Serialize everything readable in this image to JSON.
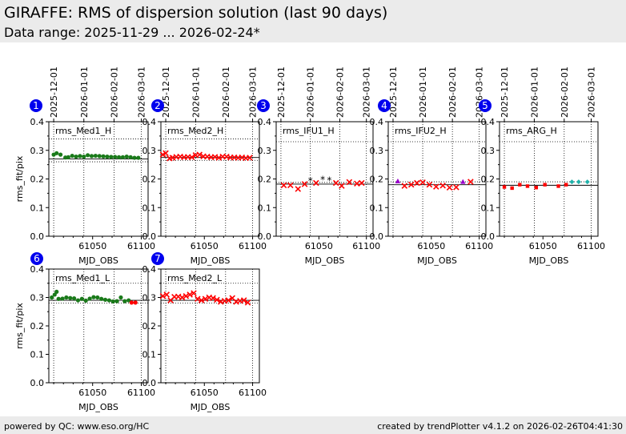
{
  "header": {
    "title": "GIRAFFE: RMS of dispersion solution (last 90 days)",
    "subtitle": "Data range: 2025-11-29 ... 2026-02-24*"
  },
  "footer": {
    "left": "powered by QC: www.eso.org/HC",
    "right": "created by trendPlotter v4.1.2 on 2026-02-26T04:41:30"
  },
  "colors": {
    "background": "#ffffff",
    "band": "#ebebeb",
    "badge": "#0000ee",
    "green": "#1a7a1a",
    "red": "#ff0000",
    "black": "#000000",
    "purple": "#9900cc",
    "cyan": "#20b2aa"
  },
  "chart_data": [
    {
      "type": "scatter",
      "badge": "1",
      "label": "rms_Med1_H",
      "xlabel": "MJD_OBS",
      "ylabel": "rms_fit/pix",
      "xticks": [
        61050,
        61100
      ],
      "yticks": [
        0.0,
        0.1,
        0.2,
        0.3,
        0.4
      ],
      "date_ticks": [
        "2025-12-01",
        "2026-01-01",
        "2026-02-01",
        "2026-03-01"
      ],
      "xlim": [
        61005,
        61107
      ],
      "ylim": [
        0,
        0.4
      ],
      "ref_lines": {
        "solid": 0.27,
        "dotted": [
          0.26,
          0.34
        ]
      },
      "series": [
        {
          "marker": "circle",
          "color": "#1a7a1a",
          "x": [
            61010,
            61013,
            61017,
            61022,
            61025,
            61029,
            61033,
            61037,
            61041,
            61045,
            61049,
            61053,
            61057,
            61061,
            61065,
            61069,
            61073,
            61077,
            61081,
            61085,
            61089,
            61093,
            61097
          ],
          "y": [
            0.285,
            0.29,
            0.285,
            0.275,
            0.276,
            0.281,
            0.278,
            0.28,
            0.278,
            0.283,
            0.28,
            0.281,
            0.28,
            0.279,
            0.278,
            0.277,
            0.277,
            0.276,
            0.276,
            0.278,
            0.276,
            0.274,
            0.274
          ]
        }
      ]
    },
    {
      "type": "scatter",
      "badge": "2",
      "label": "rms_Med2_H",
      "xlabel": "MJD_OBS",
      "ylabel": "",
      "xticks": [
        61050,
        61100
      ],
      "yticks": [
        0.0,
        0.1,
        0.2,
        0.3,
        0.4
      ],
      "date_ticks": [
        "2025-12-01",
        "2026-01-01",
        "2026-02-01",
        "2026-03-01"
      ],
      "xlim": [
        61005,
        61107
      ],
      "ylim": [
        0,
        0.4
      ],
      "ref_lines": {
        "solid": 0.275,
        "dotted": [
          0.265,
          0.34
        ]
      },
      "series": [
        {
          "marker": "x",
          "color": "#ff0000",
          "x": [
            61007,
            61010,
            61014,
            61017,
            61021,
            61025,
            61029,
            61033,
            61037,
            61041,
            61045,
            61049,
            61053,
            61057,
            61061,
            61065,
            61069,
            61073,
            61077,
            61081,
            61085,
            61089,
            61093,
            61097
          ],
          "y": [
            0.285,
            0.29,
            0.272,
            0.274,
            0.277,
            0.278,
            0.276,
            0.277,
            0.276,
            0.283,
            0.285,
            0.279,
            0.278,
            0.276,
            0.277,
            0.274,
            0.278,
            0.278,
            0.275,
            0.275,
            0.274,
            0.275,
            0.273,
            0.274
          ]
        }
      ]
    },
    {
      "type": "scatter",
      "badge": "3",
      "label": "rms_IFU1_H",
      "xlabel": "MJD_OBS",
      "ylabel": "",
      "xticks": [
        61050,
        61100
      ],
      "yticks": [
        0.0,
        0.1,
        0.2,
        0.3,
        0.4
      ],
      "date_ticks": [
        "2025-12-01",
        "2026-01-01",
        "2026-02-01",
        "2026-03-01"
      ],
      "xlim": [
        61005,
        61107
      ],
      "ylim": [
        0,
        0.4
      ],
      "ref_lines": {
        "solid": 0.182,
        "dotted": [
          0.188,
          0.33
        ]
      },
      "series": [
        {
          "marker": "x",
          "color": "#ff0000",
          "x": [
            61013,
            61020,
            61028,
            61035,
            61047,
            61068,
            61074,
            61082,
            61090,
            61095
          ],
          "y": [
            0.178,
            0.178,
            0.165,
            0.182,
            0.186,
            0.186,
            0.176,
            0.189,
            0.184,
            0.186
          ]
        },
        {
          "marker": "star",
          "color": "#000000",
          "x": [
            61041,
            61054,
            61061
          ],
          "y": [
            0.19,
            0.195,
            0.192
          ]
        }
      ]
    },
    {
      "type": "scatter",
      "badge": "4",
      "label": "rms_IFU2_H",
      "xlabel": "MJD_OBS",
      "ylabel": "",
      "xticks": [
        61050,
        61100
      ],
      "yticks": [
        0.0,
        0.1,
        0.2,
        0.3,
        0.4
      ],
      "date_ticks": [
        "2025-12-01",
        "2026-01-01",
        "2026-02-01",
        "2026-03-01"
      ],
      "xlim": [
        61005,
        61107
      ],
      "ylim": [
        0,
        0.4
      ],
      "ref_lines": {
        "solid": 0.18,
        "dotted": [
          0.19,
          0.33
        ]
      },
      "series": [
        {
          "marker": "x",
          "color": "#ff0000",
          "x": [
            61022,
            61029,
            61035,
            61041,
            61048,
            61055,
            61062,
            61069,
            61076,
            61091
          ],
          "y": [
            0.176,
            0.18,
            0.186,
            0.188,
            0.18,
            0.173,
            0.177,
            0.17,
            0.171,
            0.19
          ]
        },
        {
          "marker": "triangle",
          "color": "#9900cc",
          "x": [
            61015,
            61083
          ],
          "y": [
            0.192,
            0.19
          ]
        }
      ]
    },
    {
      "type": "scatter",
      "badge": "5",
      "label": "rms_ARG_H",
      "xlabel": "MJD_OBS",
      "ylabel": "",
      "xticks": [
        61050,
        61100
      ],
      "yticks": [
        0.0,
        0.1,
        0.2,
        0.3,
        0.4
      ],
      "date_ticks": [
        "2025-12-01",
        "2026-01-01",
        "2026-02-01",
        "2026-03-01"
      ],
      "xlim": [
        61005,
        61107
      ],
      "ylim": [
        0,
        0.4
      ],
      "ref_lines": {
        "solid": 0.178,
        "dotted": [
          0.19,
          0.33
        ]
      },
      "series": [
        {
          "marker": "square",
          "color": "#ff0000",
          "x": [
            61010,
            61018,
            61026,
            61034,
            61043,
            61052,
            61066,
            61074
          ],
          "y": [
            0.172,
            0.168,
            0.18,
            0.175,
            0.17,
            0.18,
            0.175,
            0.18
          ]
        },
        {
          "marker": "diamond",
          "color": "#20b2aa",
          "x": [
            61080,
            61087,
            61096
          ],
          "y": [
            0.19,
            0.19,
            0.19
          ]
        }
      ]
    },
    {
      "type": "scatter",
      "badge": "6",
      "label": "rms_Med1_L",
      "xlabel": "MJD_OBS",
      "ylabel": "rms_fit/pix",
      "xticks": [
        61050,
        61100
      ],
      "yticks": [
        0.0,
        0.1,
        0.2,
        0.3,
        0.4
      ],
      "date_ticks": [],
      "xlim": [
        61005,
        61107
      ],
      "ylim": [
        0,
        0.4
      ],
      "ref_lines": {
        "solid": 0.29,
        "dotted": [
          0.28,
          0.35
        ]
      },
      "series": [
        {
          "marker": "circle",
          "color": "#1a7a1a",
          "x": [
            61008,
            61011,
            61013,
            61015,
            61019,
            61023,
            61027,
            61031,
            61035,
            61039,
            61043,
            61047,
            61051,
            61055,
            61059,
            61063,
            61067,
            61071,
            61075,
            61079,
            61083,
            61087
          ],
          "y": [
            0.3,
            0.31,
            0.32,
            0.295,
            0.296,
            0.3,
            0.298,
            0.297,
            0.29,
            0.295,
            0.289,
            0.296,
            0.301,
            0.3,
            0.295,
            0.292,
            0.29,
            0.286,
            0.287,
            0.3,
            0.287,
            0.29
          ]
        },
        {
          "marker": "circle",
          "color": "#ff0000",
          "x": [
            61090,
            61094
          ],
          "y": [
            0.282,
            0.282
          ]
        }
      ]
    },
    {
      "type": "scatter",
      "badge": "7",
      "label": "rms_Med2_L",
      "xlabel": "MJD_OBS",
      "ylabel": "",
      "xticks": [
        61050,
        61100
      ],
      "yticks": [
        0.0,
        0.1,
        0.2,
        0.3,
        0.4
      ],
      "date_ticks": [],
      "xlim": [
        61005,
        61107
      ],
      "ylim": [
        0,
        0.4
      ],
      "ref_lines": {
        "solid": 0.29,
        "dotted": [
          0.28,
          0.35
        ]
      },
      "series": [
        {
          "marker": "x",
          "color": "#ff0000",
          "x": [
            61007,
            61011,
            61015,
            61019,
            61023,
            61027,
            61031,
            61035,
            61039,
            61043,
            61047,
            61051,
            61055,
            61059,
            61063,
            61067,
            61071,
            61075,
            61079,
            61083,
            61087,
            61091,
            61095
          ],
          "y": [
            0.305,
            0.31,
            0.29,
            0.302,
            0.303,
            0.3,
            0.305,
            0.31,
            0.315,
            0.295,
            0.29,
            0.295,
            0.3,
            0.298,
            0.292,
            0.285,
            0.288,
            0.29,
            0.298,
            0.285,
            0.288,
            0.29,
            0.282
          ]
        }
      ]
    }
  ]
}
